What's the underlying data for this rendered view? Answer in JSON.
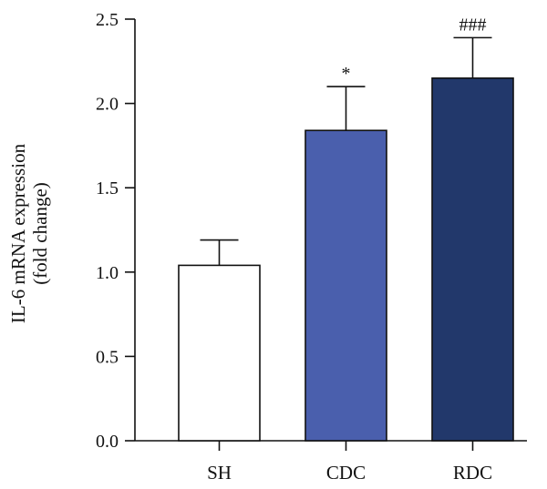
{
  "chart_data": {
    "type": "bar",
    "categories": [
      "SH",
      "CDC",
      "RDC"
    ],
    "values": [
      1.04,
      1.84,
      2.15
    ],
    "errors": [
      0.15,
      0.26,
      0.24
    ],
    "annotations": [
      "",
      "*",
      "###"
    ],
    "bar_colors": [
      "#ffffff",
      "#4a5fad",
      "#22386b"
    ],
    "ylabel_lines": [
      "IL-6 mRNA expression",
      "(fold change)"
    ],
    "xlabel": "",
    "ylim": [
      0,
      2.5
    ],
    "yticks": [
      0.0,
      0.5,
      1.0,
      1.5,
      2.0,
      2.5
    ],
    "ytick_labels": [
      "0.0",
      "0.5",
      "1.0",
      "1.5",
      "2.0",
      "2.5"
    ],
    "grid": false
  }
}
